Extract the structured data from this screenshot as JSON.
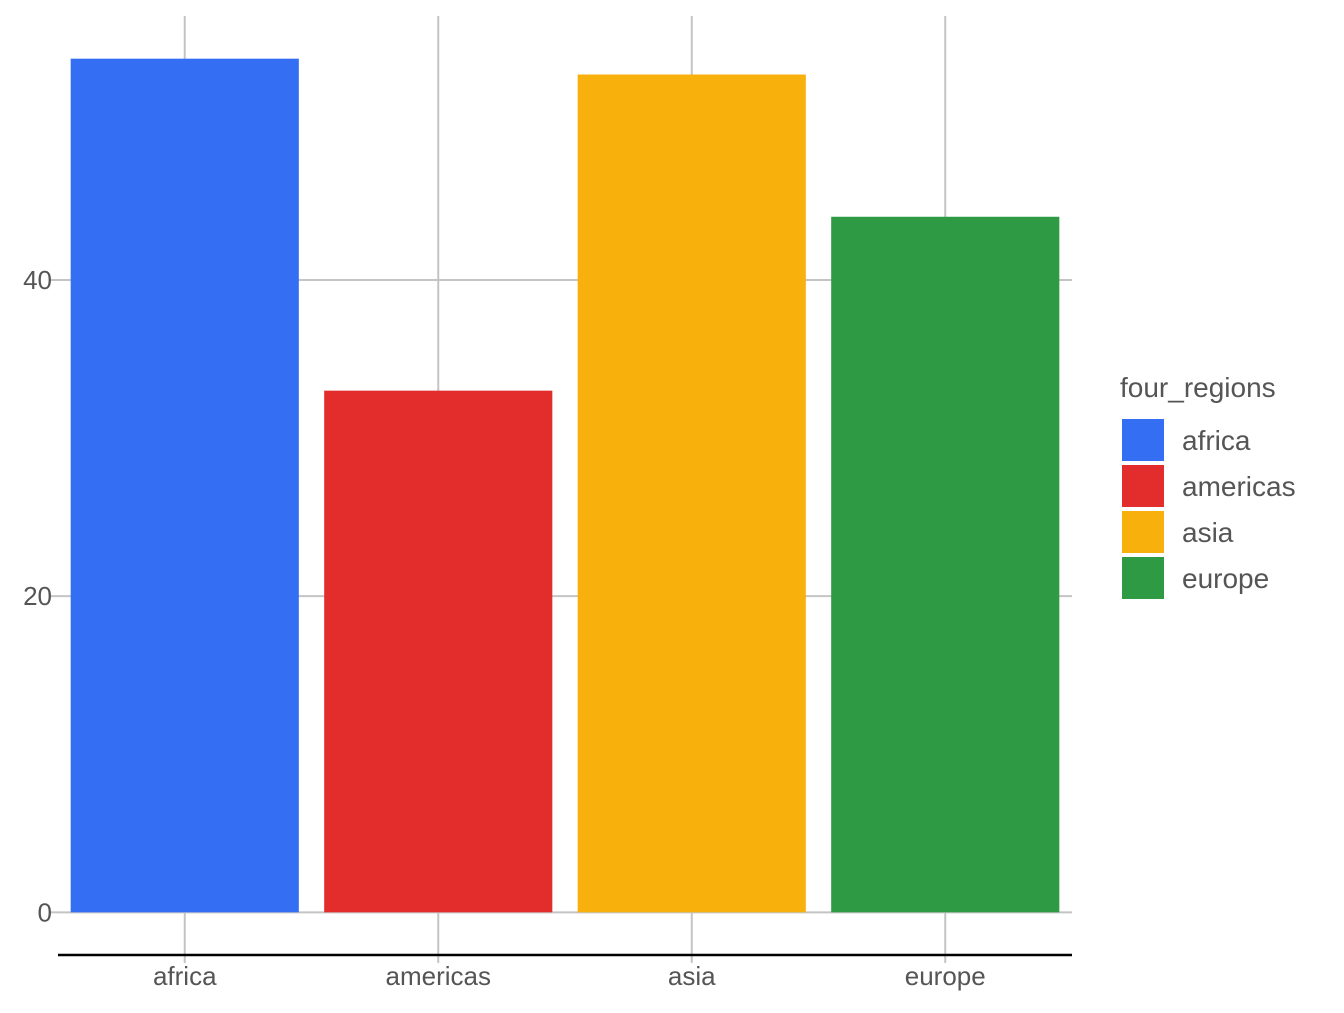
{
  "chart_data": {
    "type": "bar",
    "title": "",
    "xlabel": "",
    "ylabel": "",
    "categories": [
      "africa",
      "americas",
      "asia",
      "europe"
    ],
    "values": [
      54,
      33,
      53,
      44
    ],
    "ylim": [
      0,
      54
    ],
    "yticks": [
      0,
      20,
      40
    ],
    "grid": true,
    "colors": [
      "#346ef2",
      "#e32c2c",
      "#f8b00d",
      "#2e9b44"
    ],
    "legend": {
      "title": "four_regions",
      "placement": "right",
      "entries": [
        "africa",
        "americas",
        "asia",
        "europe"
      ]
    }
  }
}
